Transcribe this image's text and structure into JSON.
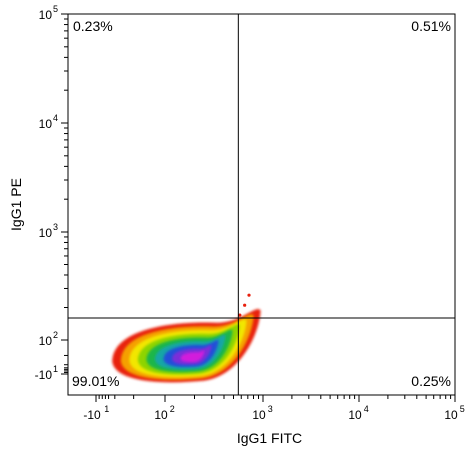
{
  "chart_data": {
    "type": "density-scatter",
    "title": "",
    "xlabel": "IgG1 FITC",
    "ylabel": "IgG1 PE",
    "x_scale": "biexponential",
    "y_scale": "biexponential",
    "xlim": [
      -10,
      100000
    ],
    "ylim": [
      -10,
      100000
    ],
    "x_ticks": [
      {
        "value": -10,
        "base": "-10",
        "exp": "1"
      },
      {
        "value": 100,
        "base": "10",
        "exp": "2"
      },
      {
        "value": 1000,
        "base": "10",
        "exp": "3"
      },
      {
        "value": 10000,
        "base": "10",
        "exp": "4"
      },
      {
        "value": 100000,
        "base": "10",
        "exp": "5"
      }
    ],
    "y_ticks": [
      {
        "value": -10,
        "base": "-10",
        "exp": "1"
      },
      {
        "value": 100,
        "base": "10",
        "exp": "2"
      },
      {
        "value": 1000,
        "base": "10",
        "exp": "3"
      },
      {
        "value": 10000,
        "base": "10",
        "exp": "4"
      },
      {
        "value": 100000,
        "base": "10",
        "exp": "5"
      }
    ],
    "quadrant_gate": {
      "x": 560,
      "y": 160
    },
    "quadrants": [
      {
        "position": "upper-left",
        "label": "0.23%"
      },
      {
        "position": "upper-right",
        "label": "0.51%"
      },
      {
        "position": "lower-left",
        "label": "99.01%"
      },
      {
        "position": "lower-right",
        "label": "0.25%"
      }
    ],
    "population": {
      "description_colors": "density colormap from low to high",
      "center": {
        "x": 150,
        "y": 60
      },
      "colors": [
        "#e8200e",
        "#f5a000",
        "#f2e600",
        "#8ed400",
        "#1fb64a",
        "#16a6a6",
        "#2050d8",
        "#7a2fd8",
        "#d21edc"
      ]
    },
    "grid": false,
    "legend": "none"
  }
}
